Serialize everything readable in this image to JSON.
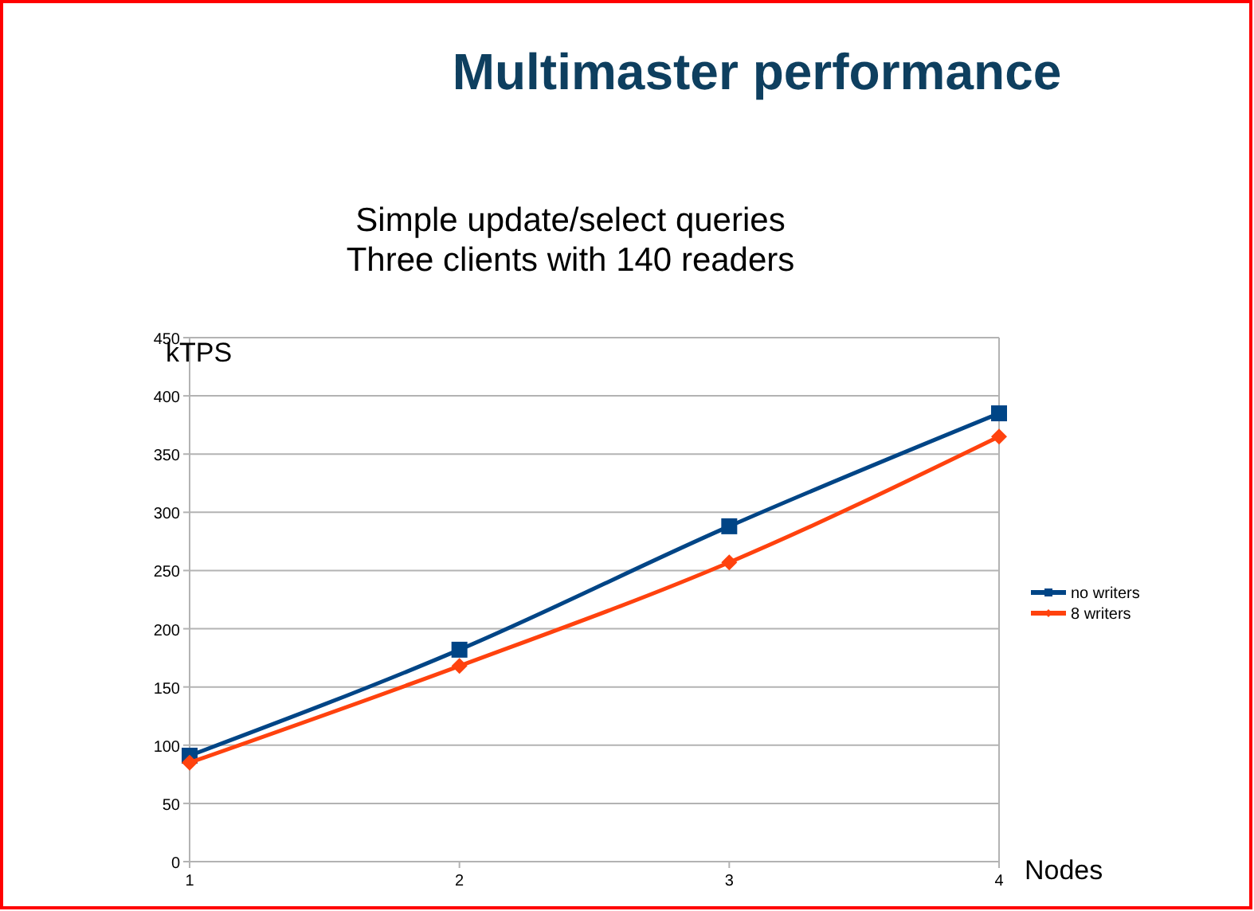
{
  "chart_data": {
    "type": "line",
    "title": "Multimaster performance",
    "subtitle": "Simple update/select queries\nThree clients with 140 readers",
    "xlabel": "Nodes",
    "ylabel": "kTPS",
    "x": [
      1,
      2,
      3,
      4
    ],
    "xlim": [
      1,
      4
    ],
    "xticks": [
      1,
      2,
      3,
      4
    ],
    "ylim": [
      0,
      450
    ],
    "yticks": [
      0,
      50,
      100,
      150,
      200,
      250,
      300,
      350,
      400,
      450
    ],
    "grid": "y",
    "legend": "right",
    "series": [
      {
        "name": "no writers",
        "color": "#004586",
        "values": [
          91,
          182,
          288,
          385
        ],
        "marker": "square"
      },
      {
        "name": "8 writers",
        "color": "#ff420e",
        "values": [
          85,
          168,
          257,
          365
        ],
        "marker": "diamond"
      }
    ]
  }
}
